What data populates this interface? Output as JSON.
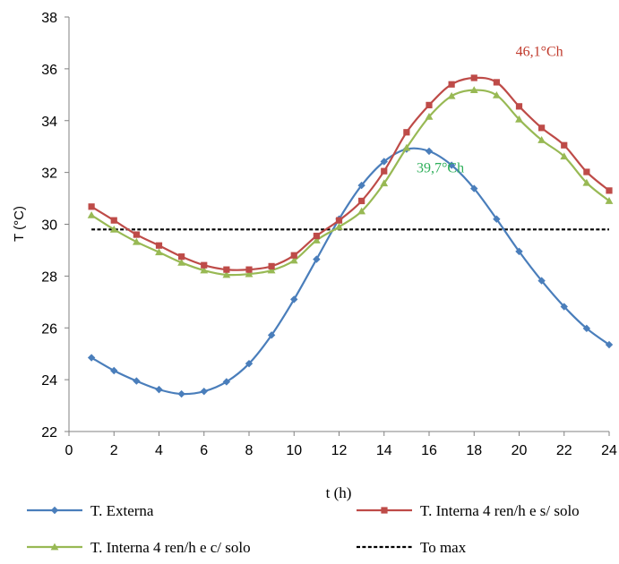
{
  "chart_data": {
    "type": "line",
    "xlabel": "t (h)",
    "ylabel": "T (°C)",
    "xlim": [
      0,
      24
    ],
    "ylim": [
      22,
      38
    ],
    "xticks": [
      0,
      2,
      4,
      6,
      8,
      10,
      12,
      14,
      16,
      18,
      20,
      22,
      24
    ],
    "yticks": [
      22,
      24,
      26,
      28,
      30,
      32,
      34,
      36,
      38
    ],
    "grid": false,
    "legend_position": "bottom",
    "x": [
      1,
      2,
      3,
      4,
      5,
      6,
      7,
      8,
      9,
      10,
      11,
      12,
      13,
      14,
      15,
      16,
      17,
      18,
      19,
      20,
      21,
      22,
      23,
      24
    ],
    "series": [
      {
        "name": "T. Externa",
        "color": "#4A7EBB",
        "marker": "diamond",
        "values": [
          24.85,
          24.35,
          23.95,
          23.62,
          23.45,
          23.55,
          23.92,
          24.62,
          25.72,
          27.1,
          28.65,
          30.2,
          31.5,
          32.42,
          32.9,
          32.82,
          32.28,
          31.38,
          30.2,
          28.95,
          27.82,
          26.82,
          25.98,
          25.35
        ]
      },
      {
        "name": "T. Interna 4 ren/h e s/ solo",
        "color": "#BE4B48",
        "marker": "square",
        "values": [
          30.68,
          30.15,
          29.6,
          29.18,
          28.75,
          28.42,
          28.25,
          28.25,
          28.38,
          28.8,
          29.55,
          30.15,
          30.9,
          32.05,
          33.55,
          34.6,
          35.4,
          35.65,
          35.48,
          34.55,
          33.72,
          33.05,
          32.02,
          31.3
        ]
      },
      {
        "name": "T. Interna 4 ren/h e c/ solo",
        "color": "#98B954",
        "marker": "triangle",
        "values": [
          30.35,
          29.8,
          29.32,
          28.92,
          28.52,
          28.22,
          28.05,
          28.08,
          28.22,
          28.6,
          29.38,
          29.9,
          30.5,
          31.58,
          32.95,
          34.15,
          34.95,
          35.18,
          34.98,
          34.05,
          33.25,
          32.62,
          31.6,
          30.9
        ]
      },
      {
        "name": "To max",
        "color": "#000000",
        "style": "dashed",
        "values": [
          29.8,
          29.8,
          29.8,
          29.8,
          29.8,
          29.8,
          29.8,
          29.8,
          29.8,
          29.8,
          29.8,
          29.8,
          29.8,
          29.8,
          29.8,
          29.8,
          29.8,
          29.8,
          29.8,
          29.8,
          29.8,
          29.8,
          29.8,
          29.8
        ]
      }
    ],
    "annotations": [
      {
        "text": "46,1°Ch",
        "color": "#C0392B",
        "x": 20.9,
        "y": 36.5
      },
      {
        "text": "39,7°Ch",
        "color": "#2EAF5A",
        "x": 16.5,
        "y": 32.0
      }
    ]
  }
}
